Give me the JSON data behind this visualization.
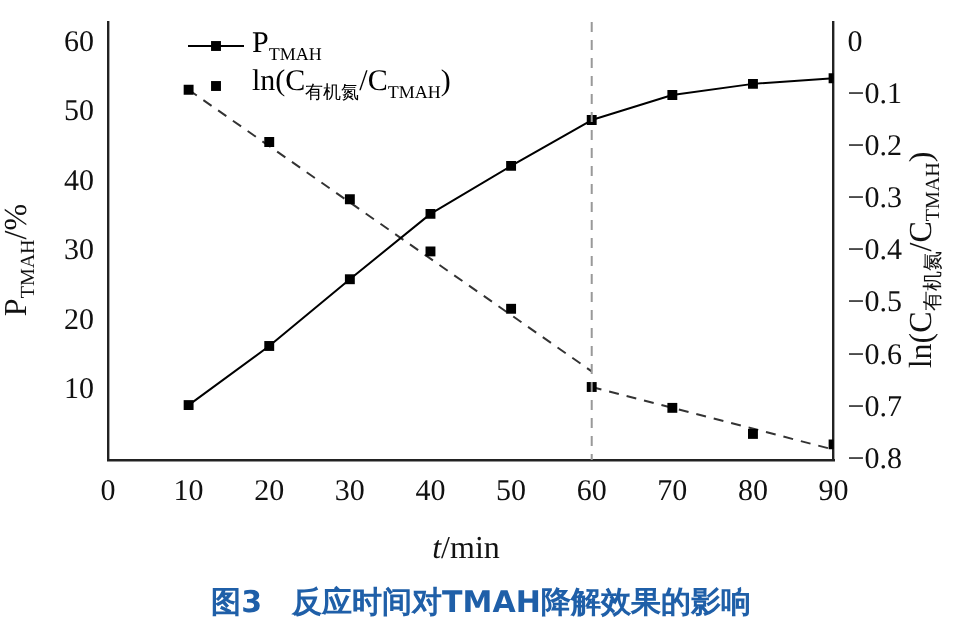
{
  "chart_data": {
    "type": "line",
    "title": "图3　反应时间对TMAH降解效果的影响",
    "xlabel": "t/min",
    "ylabel": "P$_{TMAH}$/%",
    "y2label": "ln(C$_{有机氮}$/C$_{TMAH}$)",
    "x": [
      10,
      20,
      30,
      40,
      50,
      60,
      70,
      80,
      90
    ],
    "series": [
      {
        "name": "P$_{TMAH}$",
        "type": "line",
        "color": "#000000",
        "marker": "square",
        "line_style": "solid",
        "values": [
          7.9,
          16.4,
          26.0,
          35.4,
          42.3,
          48.9,
          52.5,
          54.1,
          54.9
        ]
      },
      {
        "name": "ln(C$_{有机氮}$/C$_{TMAH}$)",
        "type": "scatter",
        "axis": "y2",
        "color": "#000000",
        "marker": "square",
        "values": [
          -0.09,
          -0.19,
          -0.3,
          -0.4,
          -0.51,
          -0.66,
          -0.7,
          -0.75,
          -0.77
        ]
      },
      {
        "type": "line",
        "axis": "y2",
        "color": "#333333",
        "marker": "none",
        "line_style": "dashed",
        "x": [
          10,
          60
        ],
        "values": [
          -0.09,
          -0.63
        ]
      },
      {
        "type": "line",
        "axis": "y2",
        "color": "#333333",
        "marker": "none",
        "line_style": "dashed",
        "x": [
          60,
          90
        ],
        "values": [
          -0.66,
          -0.78
        ]
      }
    ],
    "xlim": [
      0,
      90
    ],
    "xticks": [
      0,
      10,
      20,
      30,
      40,
      50,
      60,
      70,
      80,
      90
    ],
    "ylim": [
      0,
      63
    ],
    "yticks": [
      10,
      20,
      30,
      40,
      50,
      60
    ],
    "y2lim": [
      -0.8,
      0.04
    ],
    "y2ticks": [
      {
        "value": 0,
        "label": "0"
      },
      {
        "value": -0.1,
        "label": "−0.1"
      },
      {
        "value": -0.2,
        "label": "−0.2"
      },
      {
        "value": -0.3,
        "label": "−0.3"
      },
      {
        "value": -0.4,
        "label": "−0.4"
      },
      {
        "value": -0.5,
        "label": "−0.5"
      },
      {
        "value": -0.6,
        "label": "−0.6"
      },
      {
        "value": -0.7,
        "label": "−0.7"
      },
      {
        "value": -0.8,
        "label": "−0.8"
      }
    ],
    "ref_lines": [
      {
        "axis": "x",
        "value": 60,
        "color": "#999999",
        "line_style": "dashed"
      }
    ],
    "grid": false,
    "legend": "top left"
  }
}
